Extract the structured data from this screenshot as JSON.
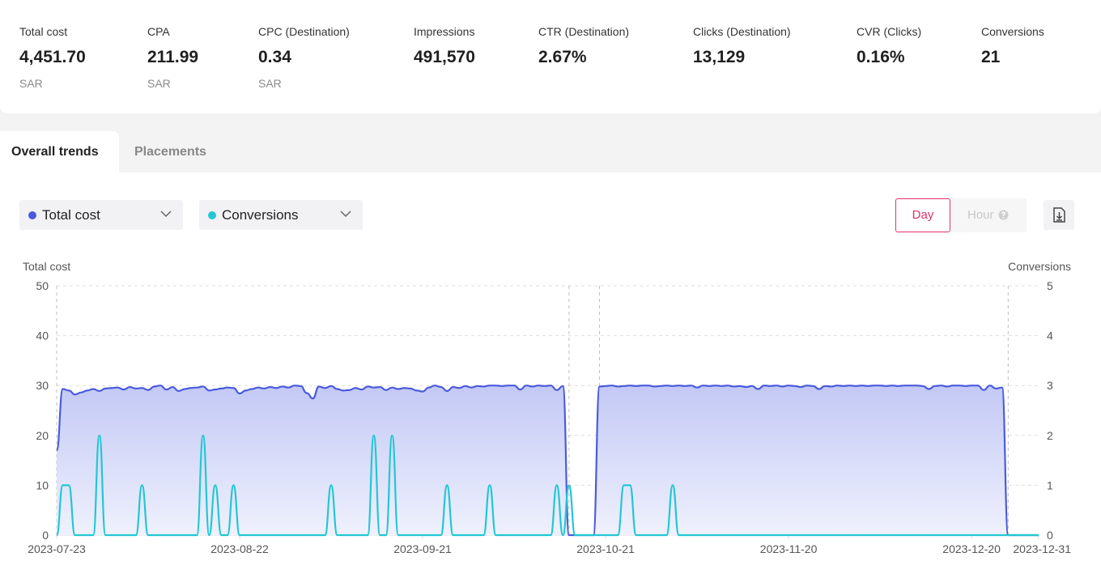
{
  "metrics": [
    {
      "label": "Total cost",
      "value": "4,451.70",
      "unit": "SAR"
    },
    {
      "label": "CPA",
      "value": "211.99",
      "unit": "SAR"
    },
    {
      "label": "CPC (Destination)",
      "value": "0.34",
      "unit": "SAR"
    },
    {
      "label": "Impressions",
      "value": "491,570"
    },
    {
      "label": "CTR (Destination)",
      "value": "2.67%"
    },
    {
      "label": "Clicks (Destination)",
      "value": "13,129"
    },
    {
      "label": "CVR (Clicks)",
      "value": "0.16%"
    },
    {
      "label": "Conversions",
      "value": "21"
    }
  ],
  "tabs": [
    "Overall trends",
    "Placements"
  ],
  "buttons": {
    "day": "Day",
    "hour": "Hour"
  },
  "chart_data": {
    "type": "line",
    "ylabel": "Total cost",
    "y2label": "Conversions",
    "ylim": [
      0,
      50
    ],
    "yticks": [
      0,
      10,
      20,
      30,
      40,
      50
    ],
    "y2lim": [
      0,
      5
    ],
    "y2ticks": [
      0,
      1,
      2,
      3,
      4,
      5
    ],
    "grid": true,
    "xticks": [
      "2023-07-23",
      "2023-08-22",
      "2023-09-21",
      "2023-10-21",
      "2023-11-20",
      "2023-12-20",
      "2023-12-31"
    ],
    "vlines": [
      "2023-07-23",
      "2023-10-15",
      "2023-10-20",
      "2023-12-26"
    ],
    "x": [
      "2023-07-23",
      "2023-07-24",
      "2023-07-25",
      "2023-07-26",
      "2023-07-27",
      "2023-07-28",
      "2023-07-29",
      "2023-07-30",
      "2023-07-31",
      "2023-08-01",
      "2023-08-02",
      "2023-08-03",
      "2023-08-04",
      "2023-08-05",
      "2023-08-06",
      "2023-08-07",
      "2023-08-08",
      "2023-08-09",
      "2023-08-10",
      "2023-08-11",
      "2023-08-12",
      "2023-08-13",
      "2023-08-14",
      "2023-08-15",
      "2023-08-16",
      "2023-08-17",
      "2023-08-18",
      "2023-08-19",
      "2023-08-20",
      "2023-08-21",
      "2023-08-22",
      "2023-08-23",
      "2023-08-24",
      "2023-08-25",
      "2023-08-26",
      "2023-08-27",
      "2023-08-28",
      "2023-08-29",
      "2023-08-30",
      "2023-08-31",
      "2023-09-01",
      "2023-09-02",
      "2023-09-03",
      "2023-09-04",
      "2023-09-05",
      "2023-09-06",
      "2023-09-07",
      "2023-09-08",
      "2023-09-09",
      "2023-09-10",
      "2023-09-11",
      "2023-09-12",
      "2023-09-13",
      "2023-09-14",
      "2023-09-15",
      "2023-09-16",
      "2023-09-17",
      "2023-09-18",
      "2023-09-19",
      "2023-09-20",
      "2023-09-21",
      "2023-09-22",
      "2023-09-23",
      "2023-09-24",
      "2023-09-25",
      "2023-09-26",
      "2023-09-27",
      "2023-09-28",
      "2023-09-29",
      "2023-09-30",
      "2023-10-01",
      "2023-10-02",
      "2023-10-03",
      "2023-10-04",
      "2023-10-05",
      "2023-10-06",
      "2023-10-07",
      "2023-10-08",
      "2023-10-09",
      "2023-10-10",
      "2023-10-11",
      "2023-10-12",
      "2023-10-13",
      "2023-10-14",
      "2023-10-15",
      "2023-10-16",
      "2023-10-17",
      "2023-10-18",
      "2023-10-19",
      "2023-10-20",
      "2023-10-21",
      "2023-10-22",
      "2023-10-23",
      "2023-10-24",
      "2023-10-25",
      "2023-10-26",
      "2023-10-27",
      "2023-10-28",
      "2023-10-29",
      "2023-10-30",
      "2023-10-31",
      "2023-11-01",
      "2023-11-02",
      "2023-11-03",
      "2023-11-04",
      "2023-11-05",
      "2023-11-06",
      "2023-11-07",
      "2023-11-08",
      "2023-11-09",
      "2023-11-10",
      "2023-11-11",
      "2023-11-12",
      "2023-11-13",
      "2023-11-14",
      "2023-11-15",
      "2023-11-16",
      "2023-11-17",
      "2023-11-18",
      "2023-11-19",
      "2023-11-20",
      "2023-11-21",
      "2023-11-22",
      "2023-11-23",
      "2023-11-24",
      "2023-11-25",
      "2023-11-26",
      "2023-11-27",
      "2023-11-28",
      "2023-11-29",
      "2023-11-30",
      "2023-12-01",
      "2023-12-02",
      "2023-12-03",
      "2023-12-04",
      "2023-12-05",
      "2023-12-06",
      "2023-12-07",
      "2023-12-08",
      "2023-12-09",
      "2023-12-10",
      "2023-12-11",
      "2023-12-12",
      "2023-12-13",
      "2023-12-14",
      "2023-12-15",
      "2023-12-16",
      "2023-12-17",
      "2023-12-18",
      "2023-12-19",
      "2023-12-20",
      "2023-12-21",
      "2023-12-22",
      "2023-12-23",
      "2023-12-24",
      "2023-12-25",
      "2023-12-26",
      "2023-12-27",
      "2023-12-28",
      "2023-12-29",
      "2023-12-30",
      "2023-12-31"
    ],
    "series": [
      {
        "name": "Total cost",
        "color": "#4a5bdc",
        "values": [
          17,
          29.3,
          29,
          28.2,
          28.6,
          29,
          29.3,
          28.9,
          29.4,
          29.5,
          29.6,
          29.2,
          29.7,
          29.4,
          29.5,
          29.1,
          29.8,
          30,
          29.2,
          29.7,
          28.9,
          29.3,
          29.5,
          29.6,
          29.8,
          29,
          29.2,
          29.4,
          29.6,
          29.5,
          28.4,
          29,
          29.3,
          29.6,
          29.4,
          29.7,
          29.5,
          29.8,
          29.6,
          30,
          29.9,
          28.5,
          27.4,
          29.8,
          29.5,
          29.9,
          29.3,
          29,
          29.1,
          29.5,
          29.2,
          29.8,
          29.6,
          29.7,
          29.1,
          29.6,
          29.3,
          29.5,
          29.4,
          29,
          28.8,
          29.6,
          30,
          29.7,
          28.9,
          29.7,
          29.5,
          29.9,
          29.6,
          29.9,
          29.8,
          30,
          30,
          29.9,
          30,
          30,
          29.2,
          30,
          29.8,
          30,
          29.9,
          30,
          29.1,
          29.9,
          0,
          0,
          0,
          0,
          0,
          29.8,
          29.9,
          30,
          29.8,
          29.9,
          30,
          29.9,
          30,
          30,
          29.8,
          29.9,
          30,
          29.9,
          30,
          29.9,
          30,
          29.6,
          30,
          29.9,
          30,
          29.9,
          30,
          29.8,
          29.9,
          29.7,
          29.9,
          29.3,
          30,
          29.9,
          30,
          29.8,
          30,
          29.9,
          29.7,
          30,
          29.9,
          29.3,
          29.9,
          29.8,
          30,
          29.9,
          30,
          29.9,
          30,
          29.9,
          30,
          30,
          29.9,
          30,
          29.9,
          30,
          30,
          30,
          29.9,
          29.3,
          29.9,
          30,
          29.8,
          30,
          30,
          29.9,
          30,
          30,
          29.1,
          30,
          29.4,
          29.6,
          0,
          0,
          0,
          0,
          0,
          0
        ]
      },
      {
        "name": "Conversions",
        "color": "#22c7d3",
        "axis": "y2",
        "values": [
          0,
          1,
          1,
          0,
          0,
          0,
          0,
          2,
          0,
          0,
          0,
          0,
          0,
          0,
          1,
          0,
          0,
          0,
          0,
          0,
          0,
          0,
          0,
          0,
          2,
          0,
          1,
          0,
          0,
          1,
          0,
          0,
          0,
          0,
          0,
          0,
          0,
          0,
          0,
          0,
          0,
          0,
          0,
          0,
          0,
          1,
          0,
          0,
          0,
          0,
          0,
          0,
          2,
          0,
          0,
          2,
          0,
          0,
          0,
          0,
          0,
          0,
          0,
          0,
          1,
          0,
          0,
          0,
          0,
          0,
          0,
          1,
          0,
          0,
          0,
          0,
          0,
          0,
          0,
          0,
          0,
          0,
          1,
          0,
          1,
          0,
          0,
          0,
          0,
          0,
          0,
          0,
          0,
          1,
          1,
          0,
          0,
          0,
          0,
          0,
          0,
          1,
          0,
          0,
          0,
          0,
          0,
          0,
          0,
          0,
          0,
          0,
          0,
          0,
          0,
          0,
          0,
          0,
          0,
          0,
          0,
          0,
          0,
          0,
          0,
          0,
          0,
          0,
          0,
          0,
          0,
          0,
          0,
          0,
          0,
          0,
          0,
          0,
          0,
          0,
          0,
          0,
          0,
          0,
          0,
          0,
          0,
          0,
          0,
          0,
          0,
          0,
          0,
          0,
          0,
          0,
          0,
          0,
          0,
          0,
          0,
          0
        ]
      }
    ]
  }
}
